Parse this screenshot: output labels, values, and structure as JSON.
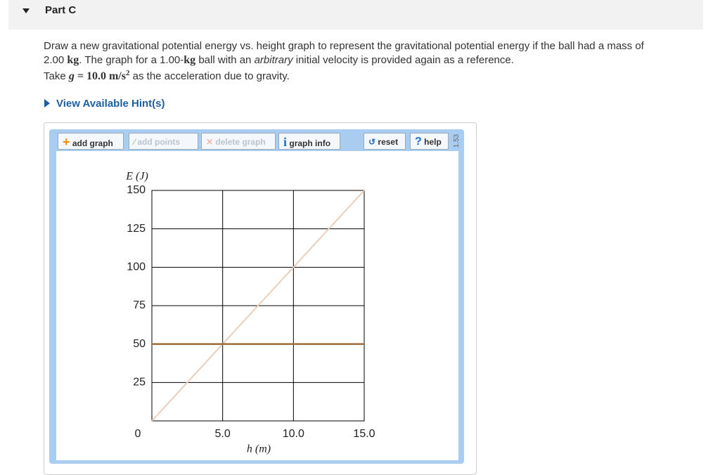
{
  "header": {
    "title": "Part C"
  },
  "problem": {
    "line1": [
      "Draw a new gravitational potential energy vs. height graph to represent the gravitational potential energy if the ball had a mass of"
    ],
    "line2": [
      "2.00 ",
      "kg",
      ". The graph for a 1.00-",
      "kg",
      " ball with an ",
      "arbitrary",
      " initial velocity is provided again as a reference."
    ],
    "line3": [
      "Take ",
      "g",
      " = 10.0 m/s",
      "2",
      " as the acceleration due to gravity."
    ]
  },
  "hint": {
    "label": "View Available Hint(s)"
  },
  "toolbar": {
    "add_graph": "add graph",
    "add_points": "add points",
    "delete_graph": "delete graph",
    "graph_info": "graph info",
    "reset": "reset",
    "help": "help",
    "version": "1.53"
  },
  "chart_data": {
    "type": "line",
    "x_label": "h (m)",
    "y_label": "E (J)",
    "x": [
      0,
      15
    ],
    "series": [
      {
        "color": "#e9cfbb",
        "values": [
          0,
          150
        ]
      },
      {
        "color": "#9c6b3c",
        "values": [
          50,
          50
        ]
      }
    ],
    "xlim": [
      0,
      15
    ],
    "ylim": [
      0,
      150
    ],
    "xticks": [
      0,
      {
        "value": 5,
        "label": "5.0"
      },
      {
        "value": 10,
        "label": "10.0"
      },
      {
        "value": 15,
        "label": "15.0"
      }
    ],
    "yticks": [
      25,
      50,
      75,
      100,
      125,
      150
    ],
    "grid": true
  }
}
